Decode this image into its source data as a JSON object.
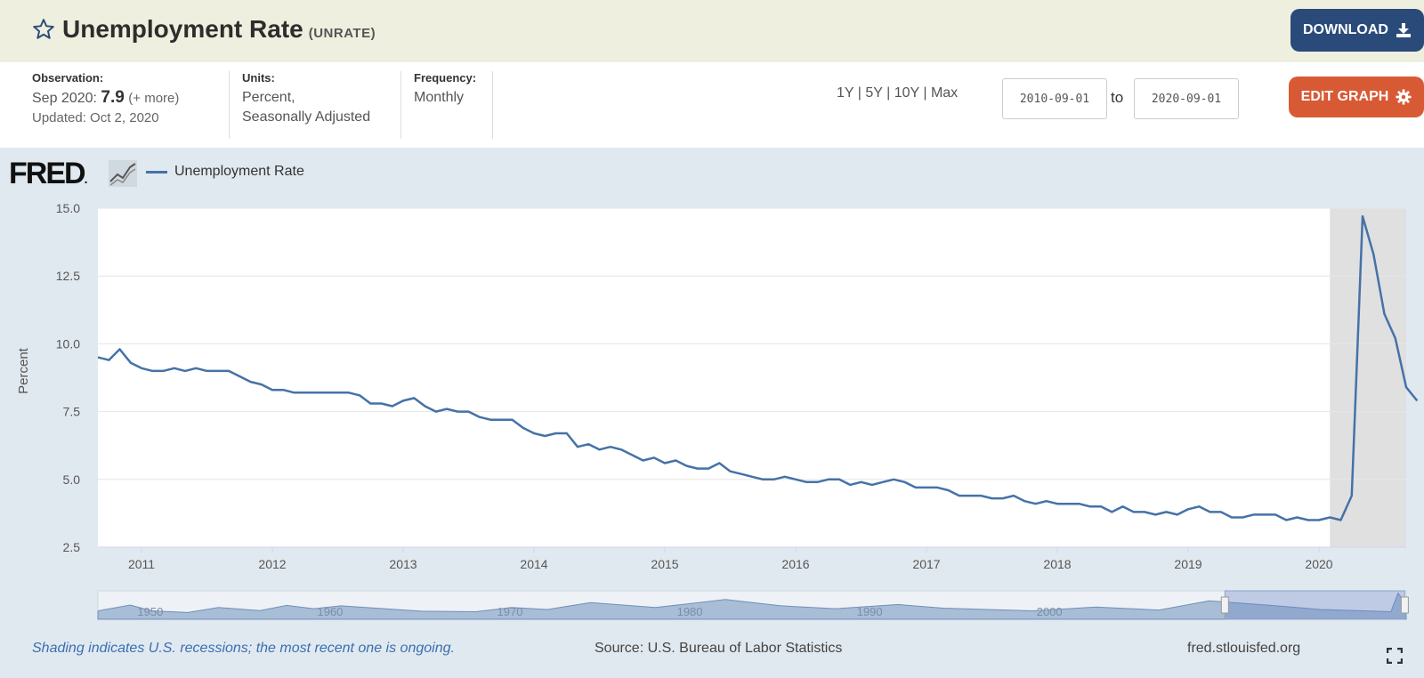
{
  "header": {
    "title": "Unemployment Rate",
    "series_code": "(UNRATE)",
    "download_label": "DOWNLOAD",
    "star_icon": "star-outline-icon",
    "download_icon": "download-icon"
  },
  "meta": {
    "observation_label": "Observation:",
    "observation_date": "Sep 2020:",
    "observation_value": "7.9",
    "observation_more": "(+ more)",
    "updated": "Updated: Oct 2, 2020",
    "units_label": "Units:",
    "units_line1": "Percent,",
    "units_line2": "Seasonally Adjusted",
    "frequency_label": "Frequency:",
    "frequency_value": "Monthly"
  },
  "controls": {
    "ranges": [
      "1Y",
      "5Y",
      "10Y",
      "Max"
    ],
    "separator": "|",
    "start_date": "2010-09-01",
    "to_label": "to",
    "end_date": "2020-09-01",
    "edit_label": "EDIT GRAPH",
    "edit_icon": "gear-icon"
  },
  "brand": {
    "logo_text": "FRED",
    "logo_mark": "."
  },
  "legend": {
    "series_name": "Unemployment Rate"
  },
  "footer": {
    "note": "Shading indicates U.S. recessions; the most recent one is ongoing.",
    "source": "Source: U.S. Bureau of Labor Statistics",
    "url": "fred.stlouisfed.org",
    "fullscreen_icon": "fullscreen-icon"
  },
  "colors": {
    "line": "#4572a7",
    "recession": "#e0e0e0",
    "download_bg": "#2a4a7a",
    "edit_bg": "#d85a35",
    "header_bg": "#efefdf"
  },
  "chart_data": {
    "type": "line",
    "ylabel": "Percent",
    "xlabel": "",
    "title": "",
    "ylim": [
      2.5,
      15.0
    ],
    "xlim": [
      "2010-09",
      "2020-09"
    ],
    "yticks": [
      "2.5",
      "5.0",
      "7.5",
      "10.0",
      "12.5",
      "15.0"
    ],
    "xticks": [
      "2011",
      "2012",
      "2013",
      "2014",
      "2015",
      "2016",
      "2017",
      "2018",
      "2019",
      "2020"
    ],
    "grid": true,
    "recession": {
      "start": "2020-02",
      "end": "2020-09"
    },
    "series": [
      {
        "name": "Unemployment Rate",
        "start": "2010-09",
        "frequency": "monthly",
        "values": [
          9.5,
          9.4,
          9.8,
          9.3,
          9.1,
          9.0,
          9.0,
          9.1,
          9.0,
          9.1,
          9.0,
          9.0,
          9.0,
          8.8,
          8.6,
          8.5,
          8.3,
          8.3,
          8.2,
          8.2,
          8.2,
          8.2,
          8.2,
          8.2,
          8.1,
          7.8,
          7.8,
          7.7,
          7.9,
          8.0,
          7.7,
          7.5,
          7.6,
          7.5,
          7.5,
          7.3,
          7.2,
          7.2,
          7.2,
          6.9,
          6.7,
          6.6,
          6.7,
          6.7,
          6.2,
          6.3,
          6.1,
          6.2,
          6.1,
          5.9,
          5.7,
          5.8,
          5.6,
          5.7,
          5.5,
          5.4,
          5.4,
          5.6,
          5.3,
          5.2,
          5.1,
          5.0,
          5.0,
          5.1,
          5.0,
          4.9,
          4.9,
          5.0,
          5.0,
          4.8,
          4.9,
          4.8,
          4.9,
          5.0,
          4.9,
          4.7,
          4.7,
          4.7,
          4.6,
          4.4,
          4.4,
          4.4,
          4.3,
          4.3,
          4.4,
          4.2,
          4.1,
          4.2,
          4.1,
          4.1,
          4.1,
          4.0,
          4.0,
          3.8,
          4.0,
          3.8,
          3.8,
          3.7,
          3.8,
          3.7,
          3.9,
          4.0,
          3.8,
          3.8,
          3.6,
          3.6,
          3.7,
          3.7,
          3.7,
          3.5,
          3.6,
          3.5,
          3.5,
          3.6,
          3.5,
          4.4,
          14.7,
          13.3,
          11.1,
          10.2,
          8.4,
          7.9
        ]
      }
    ],
    "navigator": {
      "year_labels": [
        "1950",
        "1960",
        "1970",
        "1980",
        "1990",
        "2000"
      ],
      "selection": [
        "2010-09",
        "2020-09"
      ]
    }
  }
}
